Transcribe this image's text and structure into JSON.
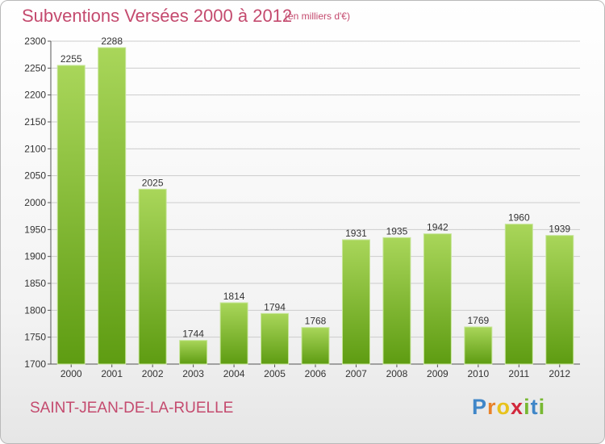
{
  "header": {
    "title": "Subventions Versées 2000 à 2012",
    "unit_note": "(en milliers d'€)"
  },
  "footer": {
    "commune": "SAINT-JEAN-DE-LA-RUELLE",
    "logo": {
      "letters": [
        "P",
        "r",
        "o",
        "x",
        "i",
        "t",
        "i"
      ],
      "colors": [
        "#3f86c8",
        "#e8822a",
        "#e8c21c",
        "#d2283c",
        "#78b832",
        "#3f86c8",
        "#78b832"
      ]
    }
  },
  "colors": {
    "title": "#c44a6e",
    "bar_light": "#a9d65a",
    "bar_dark": "#5e9c12",
    "grid": "#cccccc"
  },
  "chart_data": {
    "type": "bar",
    "title": "Subventions Versées 2000 à 2012",
    "subtitle": "(en milliers d'€)",
    "xlabel": "",
    "ylabel": "",
    "categories": [
      "2000",
      "2001",
      "2002",
      "2003",
      "2004",
      "2005",
      "2006",
      "2007",
      "2008",
      "2009",
      "2010",
      "2011",
      "2012"
    ],
    "values": [
      2255,
      2288,
      2025,
      1744,
      1814,
      1794,
      1768,
      1931,
      1935,
      1942,
      1769,
      1960,
      1939
    ],
    "ylim": [
      1700,
      2300
    ],
    "yticks": [
      1700,
      1750,
      1800,
      1850,
      1900,
      1950,
      2000,
      2050,
      2100,
      2150,
      2200,
      2250,
      2300
    ],
    "grid": true,
    "data_labels": true
  }
}
